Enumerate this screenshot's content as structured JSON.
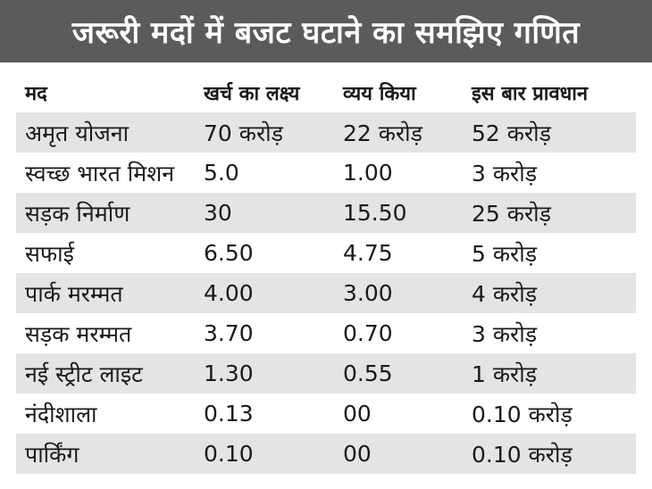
{
  "title": "जरूरी मदों में बजट घटाने का समझिए गणित",
  "columns": [
    "मद",
    "खर्च का लक्ष्य",
    "व्यय किया",
    "इस बार प्रावधान"
  ],
  "rows": [
    [
      "अमृत योजना",
      "70 करोड़",
      "22 करोड़",
      "52 करोड़"
    ],
    [
      "स्वच्छ भारत मिशन",
      "5.0",
      "1.00",
      "3 करोड़"
    ],
    [
      "सड़क निर्माण",
      "30",
      "15.50",
      "25 करोड़"
    ],
    [
      "सफाई",
      "6.50",
      "4.75",
      "5 करोड़"
    ],
    [
      "पार्क मरम्मत",
      "4.00",
      "3.00",
      "4 करोड़"
    ],
    [
      "सड़क मरम्मत",
      "3.70",
      "0.70",
      "3 करोड़"
    ],
    [
      "नई स्ट्रीट लाइट",
      "1.30",
      "0.55",
      "1 करोड़"
    ],
    [
      "नंदीशाला",
      "0.13",
      "00",
      "0.10 करोड़"
    ],
    [
      "पार्किंग",
      "0.10",
      "00",
      "0.10 करोड़"
    ]
  ],
  "colors": {
    "title_bg": "#5a5b5d",
    "title_text": "#ffffff",
    "shade": "#e3e4e6",
    "text": "#1a1a1a"
  }
}
